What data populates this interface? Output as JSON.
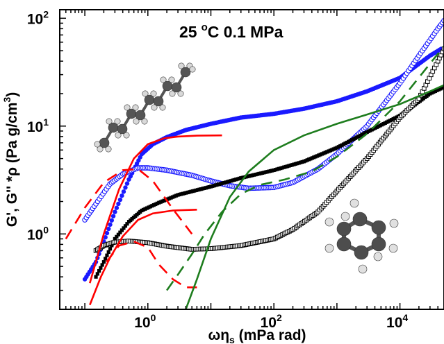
{
  "chart_data": {
    "type": "scatter",
    "title": "25 °C 0.1 MPa",
    "title_parts": {
      "value": "25",
      "unit_degree": "o",
      "unit_rest": "C 0.1 MPa"
    },
    "xlabel": "ωηs (mPa rad)",
    "xlabel_parts": {
      "main": "ωη",
      "sub": "s",
      "rest": " (mPa rad)"
    },
    "ylabel": "G', G'' *ρ (Pa g/cm³)",
    "ylabel_parts": {
      "main": "G', G'' *ρ (Pa g/cm",
      "sup": "3",
      "rest": ")"
    },
    "xscale": "log",
    "yscale": "log",
    "xlim": [
      0.04,
      50000
    ],
    "ylim": [
      0.2,
      120
    ],
    "xticks": [
      {
        "value": 1,
        "base": "10",
        "exp": "0"
      },
      {
        "value": 100,
        "base": "10",
        "exp": "2"
      },
      {
        "value": 10000,
        "base": "10",
        "exp": "4"
      }
    ],
    "yticks": [
      {
        "value": 1,
        "base": "10",
        "exp": "0"
      },
      {
        "value": 10,
        "base": "10",
        "exp": "1"
      },
      {
        "value": 100,
        "base": "10",
        "exp": "2"
      }
    ],
    "grid": false,
    "legend": "none",
    "series": [
      {
        "marker": "filled-circle",
        "color": "#1a1aff",
        "x": [
          0.1,
          0.15,
          0.2,
          0.3,
          0.5,
          0.8,
          1.2,
          2,
          4,
          10,
          30,
          100,
          300,
          1000,
          3000,
          10000,
          30000,
          45000
        ],
        "y": [
          0.38,
          0.55,
          0.85,
          1.6,
          3.2,
          5.5,
          6.8,
          7.9,
          9.2,
          10.5,
          12.0,
          13.0,
          14.5,
          17.0,
          21.0,
          28.0,
          45.0,
          52.0
        ]
      },
      {
        "marker": "open-circle",
        "color": "#1a1aff",
        "x": [
          0.1,
          0.15,
          0.25,
          0.4,
          0.7,
          1,
          2,
          5,
          10,
          20,
          40,
          100,
          200,
          500,
          1000,
          3000,
          10000,
          20000,
          40000,
          50000
        ],
        "y": [
          1.35,
          1.9,
          2.9,
          3.6,
          4.1,
          4.1,
          3.9,
          3.5,
          3.1,
          2.8,
          2.65,
          2.7,
          3.0,
          4.0,
          5.5,
          10.0,
          25.0,
          45.0,
          80.0,
          95.0
        ]
      },
      {
        "marker": "filled-square",
        "color": "#000000",
        "x": [
          0.15,
          0.2,
          0.3,
          0.5,
          0.8,
          1.5,
          3,
          10,
          30,
          100,
          300,
          1000,
          3000,
          10000,
          30000,
          50000
        ],
        "y": [
          0.4,
          0.55,
          0.9,
          1.3,
          1.65,
          1.95,
          2.3,
          2.75,
          3.3,
          3.9,
          4.7,
          6.3,
          8.8,
          12.5,
          20.0,
          23.0
        ]
      },
      {
        "marker": "open-square",
        "color": "#000000",
        "x": [
          0.15,
          0.2,
          0.3,
          0.5,
          1,
          2,
          5,
          10,
          30,
          100,
          200,
          500,
          1000,
          3000,
          10000,
          20000,
          40000,
          50000
        ],
        "y": [
          0.7,
          0.78,
          0.84,
          0.86,
          0.83,
          0.77,
          0.72,
          0.73,
          0.78,
          0.9,
          1.1,
          1.6,
          2.5,
          5.0,
          12.0,
          18.0,
          40.0,
          52.0
        ]
      },
      {
        "line": "solid",
        "color": "#ff0000",
        "x": [
          0.12,
          0.2,
          0.35,
          0.6,
          1,
          1.8,
          3,
          6,
          15
        ],
        "y": [
          0.35,
          1.0,
          2.6,
          5.0,
          6.8,
          7.7,
          8.0,
          8.15,
          8.2
        ]
      },
      {
        "line": "dashed",
        "color": "#ff0000",
        "x": [
          0.05,
          0.1,
          0.2,
          0.4,
          0.7,
          1.2,
          2.5,
          5
        ],
        "y": [
          0.9,
          1.75,
          3.0,
          3.9,
          4.0,
          3.1,
          1.7,
          1.0
        ]
      },
      {
        "line": "solid",
        "color": "#ff0000",
        "x": [
          0.12,
          0.18,
          0.25,
          0.4,
          0.7,
          1.2,
          2.5,
          6
        ],
        "y": [
          0.22,
          0.4,
          0.6,
          0.95,
          1.35,
          1.55,
          1.65,
          1.68
        ]
      },
      {
        "line": "dashed",
        "color": "#ff0000",
        "x": [
          0.22,
          0.35,
          0.6,
          1,
          1.5,
          2.5,
          4,
          6
        ],
        "y": [
          0.55,
          0.78,
          0.85,
          0.75,
          0.52,
          0.38,
          0.32,
          0.32
        ]
      },
      {
        "line": "solid",
        "color": "#1e7d1e",
        "x": [
          4,
          6,
          10,
          20,
          40,
          100,
          300,
          1000,
          3000,
          10000,
          30000,
          50000
        ],
        "y": [
          0.2,
          0.38,
          0.9,
          2.2,
          3.8,
          6.0,
          8.2,
          10.5,
          12.8,
          16.0,
          21.0,
          24.0
        ]
      },
      {
        "line": "dashed",
        "color": "#1e7d1e",
        "x": [
          2,
          3,
          5,
          8,
          15,
          30,
          60,
          150,
          400,
          1000,
          3000,
          10000,
          30000,
          50000
        ],
        "y": [
          0.3,
          0.42,
          0.65,
          1.0,
          1.6,
          2.35,
          2.85,
          3.2,
          3.8,
          5.2,
          8.5,
          17.0,
          38.0,
          55.0
        ]
      }
    ]
  }
}
